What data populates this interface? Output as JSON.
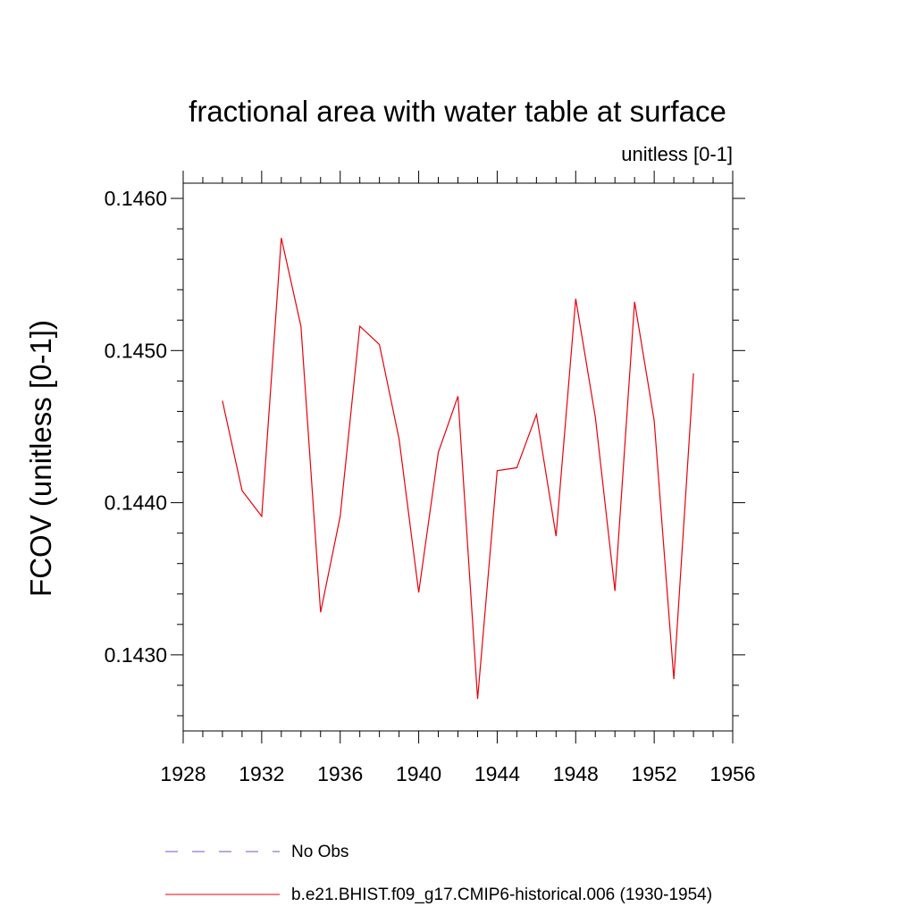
{
  "chart_data": {
    "type": "line",
    "title": "fractional area with water table at surface",
    "subtitle": "unitless [0-1]",
    "ylabel": "FCOV  (unitless [0-1])",
    "xlabel": "",
    "xlim": [
      1928,
      1956
    ],
    "ylim": [
      0.1425,
      0.1461
    ],
    "x_major_ticks": [
      1928,
      1932,
      1936,
      1940,
      1944,
      1948,
      1952,
      1956
    ],
    "x_tick_labels": [
      "1928",
      "1932",
      "1936",
      "1940",
      "1944",
      "1948",
      "1952",
      "1956"
    ],
    "y_major_ticks": [
      0.143,
      0.144,
      0.145,
      0.146
    ],
    "y_tick_labels": [
      "0.1430",
      "0.1440",
      "0.1450",
      "0.1460"
    ],
    "y_minor_step": 0.0002,
    "x_minor_step": 1,
    "series": [
      {
        "name": "b.e21.BHIST.f09_g17.CMIP6-historical.006 (1930-1954)",
        "color": "#e8000b",
        "x": [
          1930,
          1931,
          1932,
          1933,
          1934,
          1935,
          1936,
          1937,
          1938,
          1939,
          1940,
          1941,
          1942,
          1943,
          1944,
          1945,
          1946,
          1947,
          1948,
          1949,
          1950,
          1951,
          1952,
          1953,
          1954
        ],
        "values": [
          0.14467,
          0.14408,
          0.14391,
          0.14574,
          0.14516,
          0.14328,
          0.14391,
          0.14516,
          0.14504,
          0.14442,
          0.14341,
          0.14433,
          0.1447,
          0.14271,
          0.14421,
          0.14423,
          0.14458,
          0.14378,
          0.14534,
          0.14456,
          0.14342,
          0.14532,
          0.14454,
          0.14284,
          0.14485
        ]
      }
    ],
    "legend": [
      {
        "label": "No Obs",
        "style": "dashed",
        "color": "#6a5acd"
      },
      {
        "label": "b.e21.BHIST.f09_g17.CMIP6-historical.006 (1930-1954)",
        "style": "solid",
        "color": "#e8000b"
      }
    ]
  }
}
